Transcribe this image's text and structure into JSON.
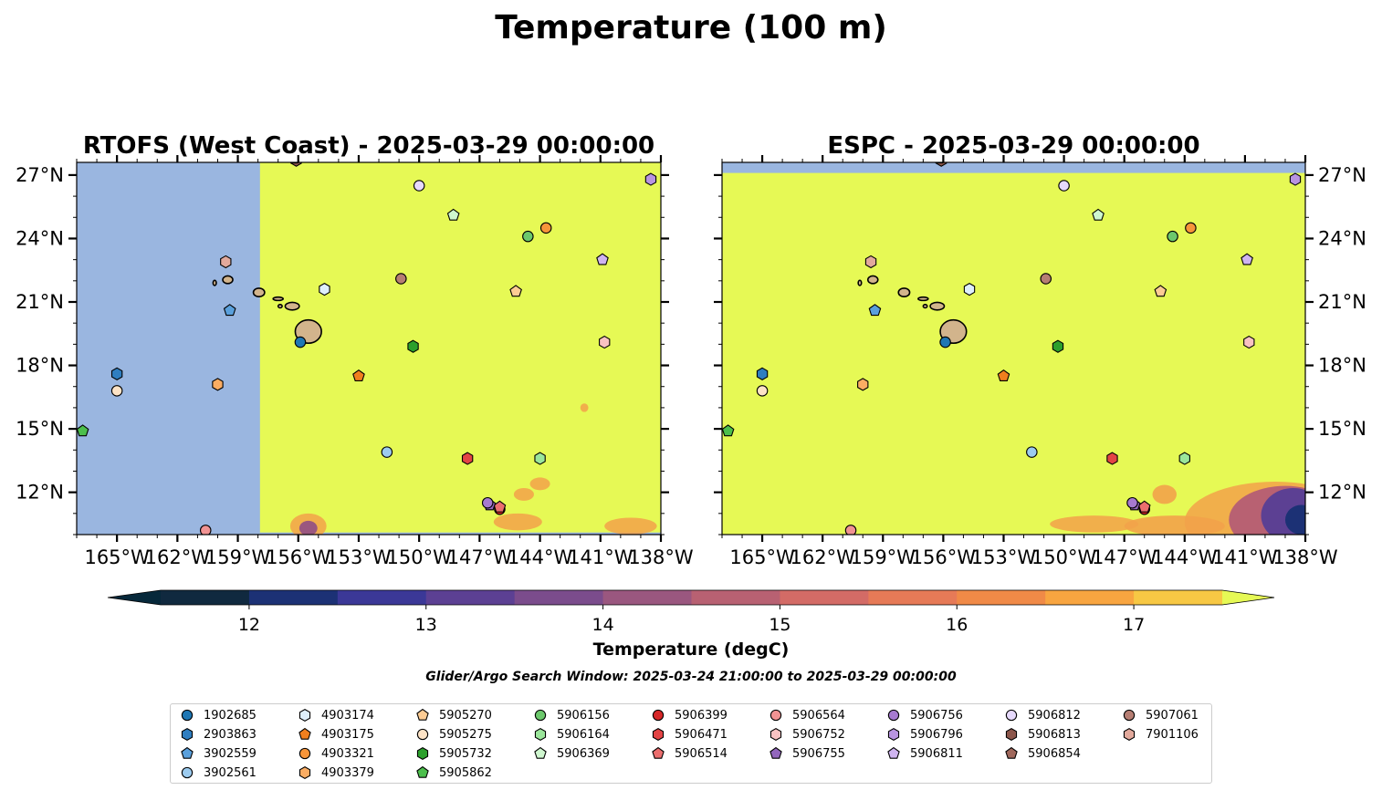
{
  "suptitle": "Temperature (100 m)",
  "colors": {
    "land": "#d2b48c",
    "masked": "#9ab6e0",
    "warm": "#e6f955"
  },
  "chart_data": {
    "type": "heatmap",
    "panels": [
      {
        "title": "RTOFS (West Coast) - 2025-03-29 00:00:00",
        "xlim": [
          -167,
          -138
        ],
        "ylim": [
          10,
          27.6
        ],
        "xticks": [
          -165,
          -162,
          -159,
          -156,
          -153,
          -150,
          -147,
          -144,
          -141,
          -138
        ],
        "xtick_labels": [
          "165°W",
          "162°W",
          "159°W",
          "156°W",
          "153°W",
          "150°W",
          "147°W",
          "144°W",
          "141°W",
          "138°W"
        ],
        "yticks": [
          12,
          15,
          18,
          21,
          24,
          27
        ],
        "ytick_labels": [
          "12°N",
          "15°N",
          "18°N",
          "21°N",
          "24°N",
          "27°N"
        ],
        "ytick_side": "left",
        "no_data_west_of": -157.9
      },
      {
        "title": "ESPC - 2025-03-29 00:00:00",
        "xlim": [
          -167,
          -138
        ],
        "ylim": [
          10,
          27.6
        ],
        "xticks": [
          -165,
          -162,
          -159,
          -156,
          -153,
          -150,
          -147,
          -144,
          -141,
          -138
        ],
        "xtick_labels": [
          "165°W",
          "162°W",
          "159°W",
          "156°W",
          "153°W",
          "150°W",
          "147°W",
          "144°W",
          "141°W",
          "138°W"
        ],
        "yticks": [
          12,
          15,
          18,
          21,
          24,
          27
        ],
        "ytick_labels": [
          "12°N",
          "15°N",
          "18°N",
          "21°N",
          "24°N",
          "27°N"
        ],
        "ytick_side": "right",
        "no_data_north_of": 27.1
      }
    ],
    "colorbar": {
      "label": "Temperature (degC)",
      "min": 11.5,
      "max": 17.5,
      "ticks": [
        12,
        13,
        14,
        15,
        16,
        17
      ],
      "tick_labels": [
        "12",
        "13",
        "14",
        "15",
        "16",
        "17"
      ],
      "extend": "both",
      "colors": [
        "#06283a",
        "#10293f",
        "#1c3175",
        "#3b3897",
        "#5c4093",
        "#7b4c8c",
        "#9a577f",
        "#b86172",
        "#d36b66",
        "#e67a57",
        "#f08a47",
        "#f8a540",
        "#f7c844",
        "#e6f955"
      ]
    },
    "note": "Glider/Argo Search Window: 2025-03-24 21:00:00 to 2025-03-29 00:00:00",
    "floats": [
      {
        "id": "1902685",
        "marker": "circle",
        "color": "#1f77b4",
        "lon": -155.9,
        "lat": 19.1
      },
      {
        "id": "2903863",
        "marker": "hexagon",
        "color": "#2f7ec0",
        "lon": -165.0,
        "lat": 17.6
      },
      {
        "id": "3902559",
        "marker": "pentagon",
        "color": "#5aa0dc",
        "lon": -159.4,
        "lat": 20.6
      },
      {
        "id": "3902561",
        "marker": "circle",
        "color": "#9ccbef",
        "lon": -151.6,
        "lat": 13.9
      },
      {
        "id": "4903174",
        "marker": "hexagon",
        "color": "#deeffc",
        "lon": -154.7,
        "lat": 21.6
      },
      {
        "id": "4903175",
        "marker": "pentagon",
        "color": "#f07f1e",
        "lon": -153.0,
        "lat": 17.5
      },
      {
        "id": "4903321",
        "marker": "circle",
        "color": "#f7953a",
        "lon": -143.7,
        "lat": 24.5
      },
      {
        "id": "4903379",
        "marker": "hexagon",
        "color": "#fbad63",
        "lon": -160.0,
        "lat": 17.1
      },
      {
        "id": "5905270",
        "marker": "pentagon",
        "color": "#fdcc94",
        "lon": -145.2,
        "lat": 21.5
      },
      {
        "id": "5905275",
        "marker": "circle",
        "color": "#fde3c6",
        "lon": -165.0,
        "lat": 16.8
      },
      {
        "id": "5905732",
        "marker": "hexagon",
        "color": "#2ca02c",
        "lon": -150.3,
        "lat": 18.9
      },
      {
        "id": "5905862",
        "marker": "pentagon",
        "color": "#4cbf4c",
        "lon": -166.7,
        "lat": 14.9
      },
      {
        "id": "5906156",
        "marker": "circle",
        "color": "#6cc86c",
        "lon": -144.6,
        "lat": 24.1
      },
      {
        "id": "5906164",
        "marker": "hexagon",
        "color": "#9be69b",
        "lon": -144.0,
        "lat": 13.6
      },
      {
        "id": "5906369",
        "marker": "pentagon",
        "color": "#cff7cf",
        "lon": -148.3,
        "lat": 25.1
      },
      {
        "id": "5906399",
        "marker": "circle",
        "color": "#d62728",
        "lon": -146.0,
        "lat": 11.2
      },
      {
        "id": "5906471",
        "marker": "hexagon",
        "color": "#e34445",
        "lon": -147.6,
        "lat": 13.6
      },
      {
        "id": "5906514",
        "marker": "pentagon",
        "color": "#eb6e6e",
        "lon": -146.0,
        "lat": 11.3
      },
      {
        "id": "5906564",
        "marker": "circle",
        "color": "#f19393",
        "lon": -160.6,
        "lat": 10.2
      },
      {
        "id": "5906752",
        "marker": "hexagon",
        "color": "#f9c2c2",
        "lon": -140.8,
        "lat": 19.1
      },
      {
        "id": "5906755",
        "marker": "pentagon",
        "color": "#9367bd",
        "lon": -146.5,
        "lat": 11.4
      },
      {
        "id": "5906756",
        "marker": "circle",
        "color": "#a67ad0",
        "lon": -146.6,
        "lat": 11.5
      },
      {
        "id": "5906796",
        "marker": "hexagon",
        "color": "#b894e0",
        "lon": -138.5,
        "lat": 26.8
      },
      {
        "id": "5906811",
        "marker": "pentagon",
        "color": "#cfb4f0",
        "lon": -140.9,
        "lat": 23.0
      },
      {
        "id": "5906812",
        "marker": "circle",
        "color": "#e6d9fc",
        "lon": -150.0,
        "lat": 26.5
      },
      {
        "id": "5906813",
        "marker": "hexagon",
        "color": "#8c564b",
        "lon": -156.1,
        "lat": 27.7
      },
      {
        "id": "5906854",
        "marker": "pentagon",
        "color": "#a0685c",
        "lon": -156.2,
        "lat": 27.8
      },
      {
        "id": "5907061",
        "marker": "circle",
        "color": "#b67e73",
        "lon": -150.9,
        "lat": 22.1
      },
      {
        "id": "7901106",
        "marker": "hexagon",
        "color": "#e2a99c",
        "lon": -159.6,
        "lat": 22.9
      }
    ],
    "warm_patches": [
      {
        "lon": -155.5,
        "lat": 10.4,
        "rx": 0.9,
        "ry": 0.6,
        "level": 0.6
      },
      {
        "lon": -145.1,
        "lat": 10.6,
        "rx": 1.2,
        "ry": 0.4,
        "level": 0.3
      },
      {
        "lon": -144.0,
        "lat": 12.4,
        "rx": 0.5,
        "ry": 0.3,
        "level": 0.3
      },
      {
        "lon": -141.8,
        "lat": 16.0,
        "rx": 0.2,
        "ry": 0.2,
        "level": 0.3
      },
      {
        "lon": -139.5,
        "lat": 10.4,
        "rx": 1.3,
        "ry": 0.4,
        "level": 0.3
      },
      {
        "lon": -144.8,
        "lat": 11.9,
        "rx": 0.5,
        "ry": 0.3,
        "level": 0.3
      }
    ],
    "cool_region_espc": {
      "lon": -140.5,
      "lat": 11.0,
      "level": 1.0
    }
  },
  "legend": {
    "columns": 9
  }
}
